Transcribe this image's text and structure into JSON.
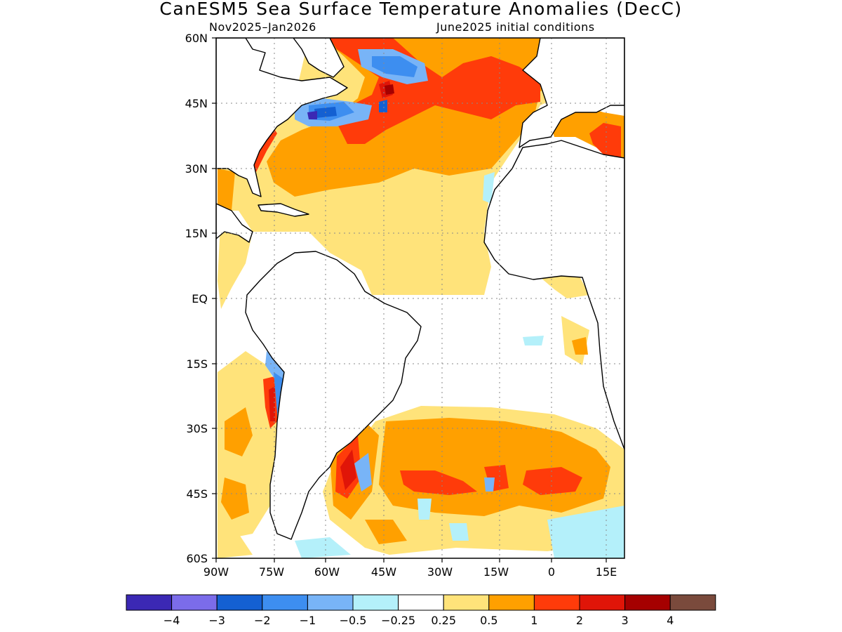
{
  "title": "CanESM5 Sea Surface Temperature Anomalies (DecC)",
  "subtitle_left": "Nov2025–Jan2026",
  "subtitle_right": "June2025 initial conditions",
  "map": {
    "lat_labels": [
      "60N",
      "45N",
      "30N",
      "15N",
      "EQ",
      "15S",
      "30S",
      "45S",
      "60S"
    ],
    "lon_labels": [
      "90W",
      "75W",
      "60W",
      "45W",
      "30W",
      "15W",
      "0",
      "15E"
    ],
    "grid_lines": "dotted"
  },
  "colorbar": {
    "colors": [
      "#3b28b4",
      "#7b6cea",
      "#1460d2",
      "#3d8ef0",
      "#78b4f7",
      "#b4f0fa",
      "#ffffff",
      "#ffe37a",
      "#ffa000",
      "#ff3b0a",
      "#e01508",
      "#a50000",
      "#7a4a3c"
    ],
    "labels": [
      "−4",
      "−3",
      "−2",
      "−1",
      "−0.5",
      "−0.25",
      "0.25",
      "0.5",
      "1",
      "2",
      "3",
      "4"
    ]
  },
  "colors": {
    "land": "#ffffff",
    "coast": "#000000",
    "warm_weak": "#ffe37a",
    "warm_mid": "#ffa000",
    "warm_strong": "#ff3b0a",
    "warm_very": "#e01508",
    "hot": "#a50000",
    "cool_weak": "#b4f0fa",
    "cool_mid": "#78b4f7",
    "cool_strong": "#3d8ef0",
    "cool_very": "#1460d2",
    "cold": "#3b28b4"
  }
}
